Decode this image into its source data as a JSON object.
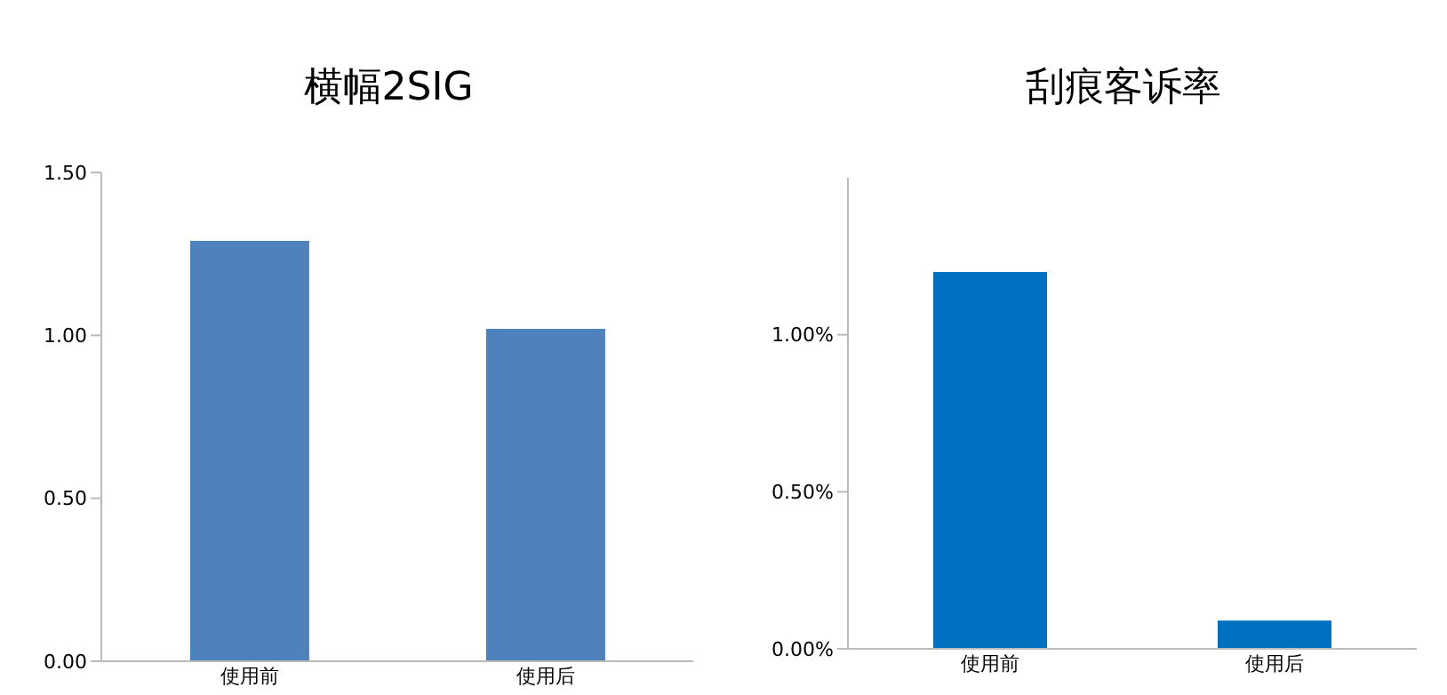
{
  "chart_data": [
    {
      "type": "bar",
      "title": "横幅2SIG",
      "categories": [
        "使用前",
        "使用后"
      ],
      "values": [
        1.29,
        1.02
      ],
      "color": "#4f81bd",
      "ylim": [
        0,
        1.5
      ],
      "yticks": [
        {
          "value": 0,
          "label": "0.00"
        },
        {
          "value": 0.5,
          "label": "0.50"
        },
        {
          "value": 1,
          "label": "1.00"
        },
        {
          "value": 1.5,
          "label": "1.50"
        }
      ],
      "grid": false,
      "legend": false
    },
    {
      "type": "bar",
      "title": "刮痕客诉率",
      "categories": [
        "使用前",
        "使用后"
      ],
      "values": [
        1.2,
        0.09
      ],
      "color": "#0070c0",
      "ylim": [
        0,
        1.5
      ],
      "yticks": [
        {
          "value": 0,
          "label": "0.00%"
        },
        {
          "value": 0.5,
          "label": "0.50%"
        },
        {
          "value": 1,
          "label": "1.00%"
        }
      ],
      "grid": false,
      "legend": false
    }
  ]
}
